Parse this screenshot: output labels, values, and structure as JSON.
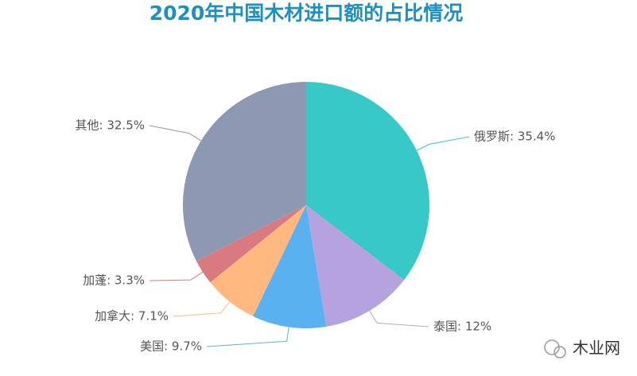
{
  "chart_data": {
    "type": "pie",
    "title": "2020年中国木材进口额的占比情况",
    "categories": [
      "俄罗斯",
      "泰国",
      "美国",
      "加拿大",
      "加蓬",
      "其他"
    ],
    "values": [
      35.4,
      12,
      9.7,
      7.1,
      3.3,
      32.5
    ],
    "value_labels": [
      "俄罗斯: 35.4%",
      "泰国: 12%",
      "美国: 9.7%",
      "加拿大: 7.1%",
      "加蓬: 3.3%",
      "其他: 32.5%"
    ],
    "colors": [
      "#36c9c8",
      "#b6a2de",
      "#5ab1ef",
      "#ffb980",
      "#d87a80",
      "#8d98b3"
    ]
  },
  "watermark": "木业网"
}
